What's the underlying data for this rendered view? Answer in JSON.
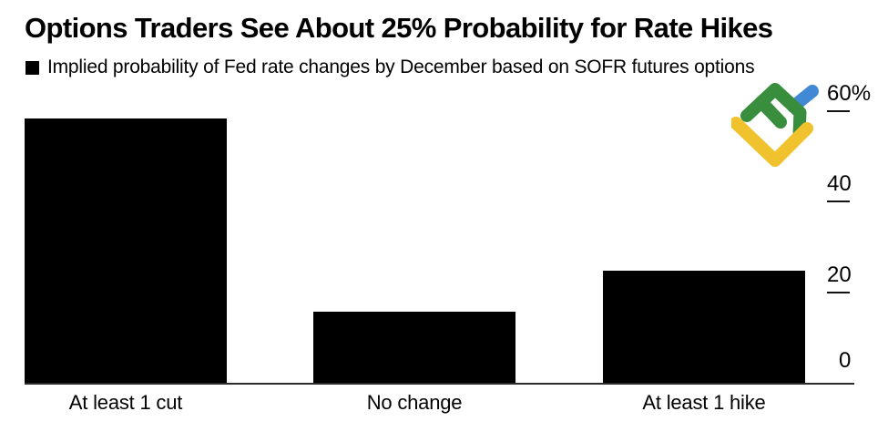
{
  "header": {
    "title": "Options Traders See About 25% Probability for Rate Hikes",
    "legend_label": "Implied probability of Fed rate changes by December based on SOFR futures options"
  },
  "logo": {
    "name": "litefinance-logo",
    "colors": {
      "green": "#388E3C",
      "yellow": "#F0C32E",
      "blue": "#4289D5"
    }
  },
  "chart_data": {
    "type": "bar",
    "title": "Options Traders See About 25% Probability for Rate Hikes",
    "subtitle": "Implied probability of Fed rate changes by December based on SOFR futures options",
    "categories": [
      "At least 1 cut",
      "No change",
      "At least 1 hike"
    ],
    "values": [
      58.5,
      16,
      25
    ],
    "unit": "%",
    "xlabel": "",
    "ylabel": "",
    "ylim": [
      0,
      60
    ],
    "yticks": [
      {
        "value": 60,
        "label": "60%"
      },
      {
        "value": 40,
        "label": "40"
      },
      {
        "value": 20,
        "label": "20"
      },
      {
        "value": 0,
        "label": "0"
      }
    ],
    "bar_color": "#000000",
    "background_color": "#ffffff",
    "grid": false,
    "axis_side": "right",
    "legend_position": "top-left"
  }
}
